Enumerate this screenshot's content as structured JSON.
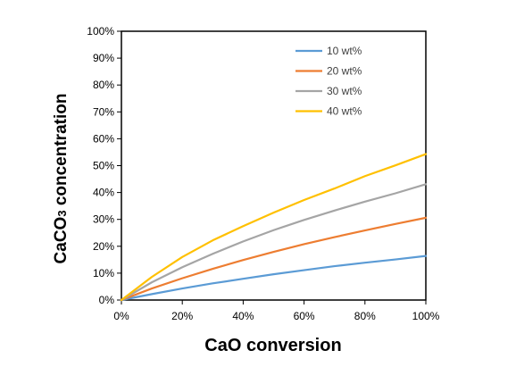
{
  "chart_data": {
    "type": "line",
    "title": "",
    "xlabel": "CaO conversion",
    "ylabel_main": "CaCO",
    "ylabel_sub": "3",
    "ylabel_rest": " concentration",
    "xlim": [
      0,
      100
    ],
    "ylim": [
      0,
      100
    ],
    "x_ticks": [
      "0%",
      "20%",
      "40%",
      "60%",
      "80%",
      "100%"
    ],
    "y_ticks": [
      "0%",
      "10%",
      "20%",
      "30%",
      "40%",
      "50%",
      "60%",
      "70%",
      "80%",
      "90%",
      "100%"
    ],
    "grid": false,
    "legend_position": "top-right",
    "x": [
      0,
      10,
      20,
      30,
      40,
      50,
      60,
      70,
      80,
      90,
      100
    ],
    "series": [
      {
        "name": "10 wt%",
        "color": "#5B9BD5",
        "values": [
          0,
          2.2,
          4.3,
          6.2,
          7.9,
          9.6,
          11.1,
          12.6,
          13.9,
          15.1,
          16.4
        ]
      },
      {
        "name": "20 wt%",
        "color": "#ED7D31",
        "values": [
          0,
          4.3,
          8.1,
          11.6,
          14.9,
          17.9,
          20.8,
          23.4,
          25.9,
          28.3,
          30.6
        ]
      },
      {
        "name": "30 wt%",
        "color": "#A5A5A5",
        "values": [
          0,
          6.6,
          12.2,
          17.2,
          21.8,
          26.0,
          29.8,
          33.3,
          36.6,
          39.7,
          43.1
        ]
      },
      {
        "name": "40 wt%",
        "color": "#FFC000",
        "values": [
          0,
          8.6,
          16.0,
          22.2,
          27.5,
          32.5,
          37.2,
          41.5,
          46.1,
          50.1,
          54.3
        ]
      }
    ]
  }
}
